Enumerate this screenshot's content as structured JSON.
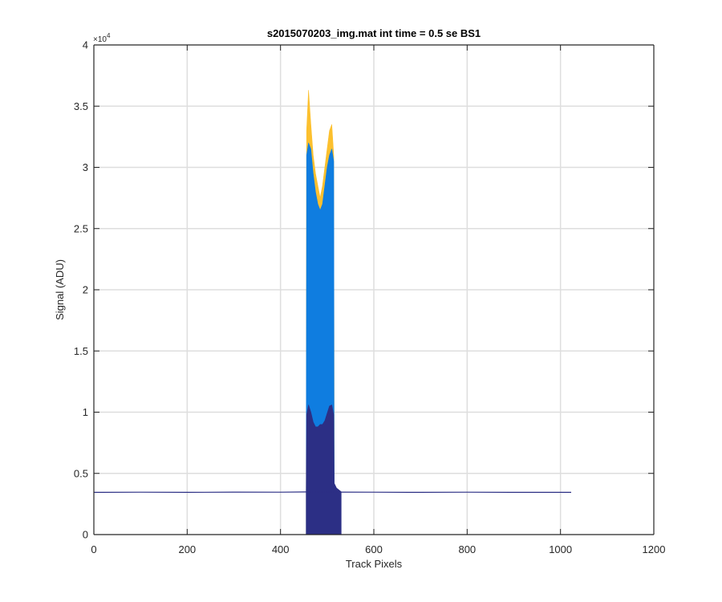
{
  "chart_data": {
    "type": "area",
    "title": "s2015070203_img.mat int time = 0.5 se   BS1",
    "xlabel": "Track Pixels",
    "ylabel": "Signal (ADU)",
    "xlim": [
      0,
      1200
    ],
    "ylim": [
      0,
      40000
    ],
    "y_exponent_label": "×10",
    "y_exponent_power": "4",
    "x_ticks": [
      0,
      200,
      400,
      600,
      800,
      1000,
      1200
    ],
    "x_tick_labels": [
      "0",
      "200",
      "400",
      "600",
      "800",
      "1000",
      "1200"
    ],
    "y_ticks": [
      0,
      5000,
      10000,
      15000,
      20000,
      25000,
      30000,
      35000,
      40000
    ],
    "y_tick_labels": [
      "0",
      "0.5",
      "1",
      "1.5",
      "2",
      "2.5",
      "3",
      "3.5",
      "4"
    ],
    "grid": true,
    "legend": "none",
    "series": [
      {
        "color": "#fcc02e",
        "points": [
          [
            455,
            3500
          ],
          [
            456,
            33000
          ],
          [
            460,
            36300
          ],
          [
            465,
            33500
          ],
          [
            470,
            31000
          ],
          [
            475,
            29500
          ],
          [
            480,
            28500
          ],
          [
            485,
            27500
          ],
          [
            490,
            28500
          ],
          [
            495,
            30000
          ],
          [
            500,
            31500
          ],
          [
            505,
            33000
          ],
          [
            510,
            33500
          ],
          [
            514,
            31000
          ],
          [
            515,
            3500
          ]
        ]
      },
      {
        "color": "#0f7de0",
        "points": [
          [
            455,
            3500
          ],
          [
            456,
            31000
          ],
          [
            460,
            32000
          ],
          [
            465,
            31500
          ],
          [
            470,
            29500
          ],
          [
            475,
            28000
          ],
          [
            480,
            27000
          ],
          [
            485,
            26500
          ],
          [
            490,
            27000
          ],
          [
            495,
            28500
          ],
          [
            500,
            30000
          ],
          [
            505,
            31000
          ],
          [
            510,
            31500
          ],
          [
            514,
            30500
          ],
          [
            515,
            3500
          ]
        ]
      },
      {
        "color": "#2c2f85",
        "points": [
          [
            455,
            3500
          ],
          [
            456,
            9800
          ],
          [
            460,
            10600
          ],
          [
            465,
            10000
          ],
          [
            470,
            9200
          ],
          [
            475,
            8800
          ],
          [
            480,
            8800
          ],
          [
            485,
            9000
          ],
          [
            490,
            9000
          ],
          [
            495,
            9300
          ],
          [
            500,
            9900
          ],
          [
            505,
            10500
          ],
          [
            510,
            10600
          ],
          [
            514,
            9800
          ],
          [
            515,
            4200
          ],
          [
            520,
            3800
          ],
          [
            530,
            3500
          ]
        ]
      },
      {
        "color": "#2c2f85",
        "points": [
          [
            0,
            3450
          ],
          [
            100,
            3460
          ],
          [
            200,
            3450
          ],
          [
            300,
            3470
          ],
          [
            400,
            3460
          ],
          [
            455,
            3480
          ],
          [
            530,
            3470
          ],
          [
            600,
            3460
          ],
          [
            700,
            3450
          ],
          [
            800,
            3460
          ],
          [
            900,
            3450
          ],
          [
            1000,
            3450
          ],
          [
            1023,
            3450
          ]
        ]
      }
    ]
  }
}
